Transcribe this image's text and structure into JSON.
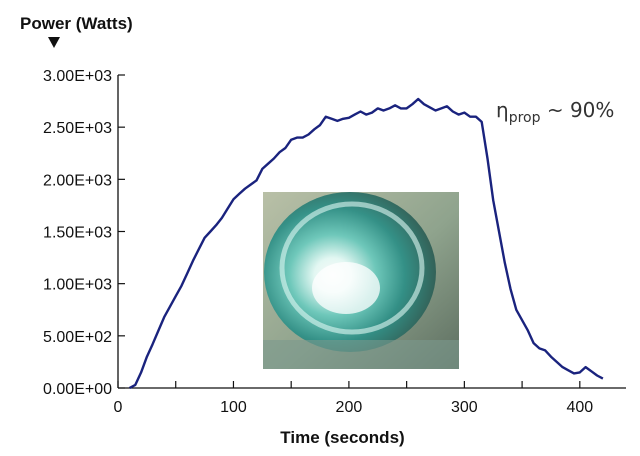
{
  "chart_data": {
    "type": "line",
    "ylabel": "Power (Watts)",
    "xlabel": "Time (seconds)",
    "xlim": [
      0,
      440
    ],
    "ylim": [
      0,
      3000
    ],
    "xticks": [
      0,
      100,
      200,
      300,
      400
    ],
    "xtick_labels": [
      "0",
      "100",
      "200",
      "300",
      "400"
    ],
    "yticks": [
      0,
      500,
      1000,
      1500,
      2000,
      2500,
      3000
    ],
    "ytick_labels": [
      "0.00E+00",
      "5.00E+02",
      "1.00E+03",
      "1.50E+03",
      "2.00E+03",
      "2.50E+03",
      "3.00E+03"
    ],
    "annotation": {
      "symbol": "η",
      "subscript": "prop",
      "text": " ~ 90%"
    },
    "series": [
      {
        "color": "#1a237e",
        "x": [
          10,
          15,
          20,
          25,
          30,
          35,
          40,
          45,
          50,
          55,
          60,
          65,
          70,
          75,
          80,
          85,
          90,
          95,
          100,
          105,
          110,
          115,
          120,
          125,
          130,
          135,
          140,
          145,
          150,
          155,
          160,
          165,
          170,
          175,
          180,
          185,
          190,
          195,
          200,
          205,
          210,
          215,
          220,
          225,
          230,
          235,
          240,
          245,
          250,
          255,
          260,
          265,
          270,
          275,
          280,
          285,
          290,
          295,
          300,
          305,
          310,
          315,
          320,
          325,
          330,
          335,
          340,
          345,
          350,
          355,
          360,
          365,
          370,
          375,
          380,
          385,
          390,
          395,
          400,
          405,
          410,
          415,
          420
        ],
        "y": [
          0,
          30,
          150,
          300,
          420,
          550,
          680,
          780,
          880,
          980,
          1100,
          1220,
          1330,
          1440,
          1500,
          1560,
          1630,
          1720,
          1810,
          1860,
          1910,
          1950,
          1990,
          2100,
          2150,
          2200,
          2260,
          2300,
          2380,
          2400,
          2400,
          2430,
          2480,
          2520,
          2600,
          2580,
          2560,
          2580,
          2590,
          2620,
          2650,
          2620,
          2640,
          2680,
          2660,
          2680,
          2710,
          2680,
          2680,
          2720,
          2770,
          2720,
          2690,
          2660,
          2680,
          2700,
          2650,
          2620,
          2640,
          2600,
          2600,
          2550,
          2200,
          1800,
          1500,
          1200,
          950,
          750,
          650,
          550,
          430,
          380,
          360,
          300,
          250,
          200,
          170,
          140,
          150,
          200,
          160,
          120,
          90
        ]
      }
    ]
  }
}
